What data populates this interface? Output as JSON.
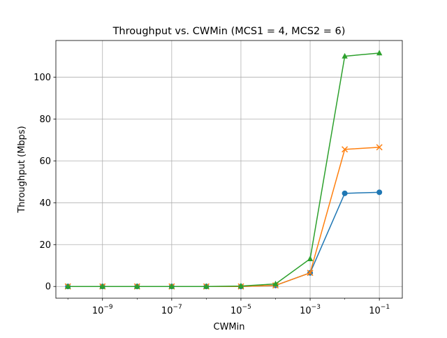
{
  "chart_data": {
    "type": "line",
    "title": "Throughput vs. CWMin (MCS1 = 4, MCS2 = 6)",
    "xlabel": "CWMin",
    "ylabel": "Throughput (Mbps)",
    "xscale": "log",
    "xlim": [
      4.5e-11,
      0.46
    ],
    "ylim": [
      -5.6,
      117.5
    ],
    "grid": true,
    "legend": "none",
    "x": [
      1e-10,
      1e-09,
      1e-08,
      1e-07,
      1e-06,
      1e-05,
      0.0001,
      0.001,
      0.01,
      0.1
    ],
    "x_ticks": [
      {
        "value": 1e-09,
        "base": "10",
        "exp": "−9"
      },
      {
        "value": 1e-07,
        "base": "10",
        "exp": "−7"
      },
      {
        "value": 1e-05,
        "base": "10",
        "exp": "−5"
      },
      {
        "value": 0.001,
        "base": "10",
        "exp": "−3"
      },
      {
        "value": 0.1,
        "base": "10",
        "exp": "−1"
      }
    ],
    "y_ticks": [
      0,
      20,
      40,
      60,
      80,
      100
    ],
    "series": [
      {
        "color": "#1f77b4",
        "marker": "circle",
        "values": [
          0,
          0,
          0,
          0,
          0,
          0,
          0.5,
          6.5,
          44.5,
          45
        ]
      },
      {
        "color": "#ff7f0e",
        "marker": "x",
        "values": [
          0,
          0,
          0,
          0,
          0,
          0,
          0.5,
          6.5,
          65.5,
          66.5
        ]
      },
      {
        "color": "#2ca02c",
        "marker": "triangle",
        "values": [
          0,
          0,
          0,
          0,
          0,
          0.2,
          1.2,
          13.2,
          110,
          111.5
        ]
      }
    ]
  }
}
